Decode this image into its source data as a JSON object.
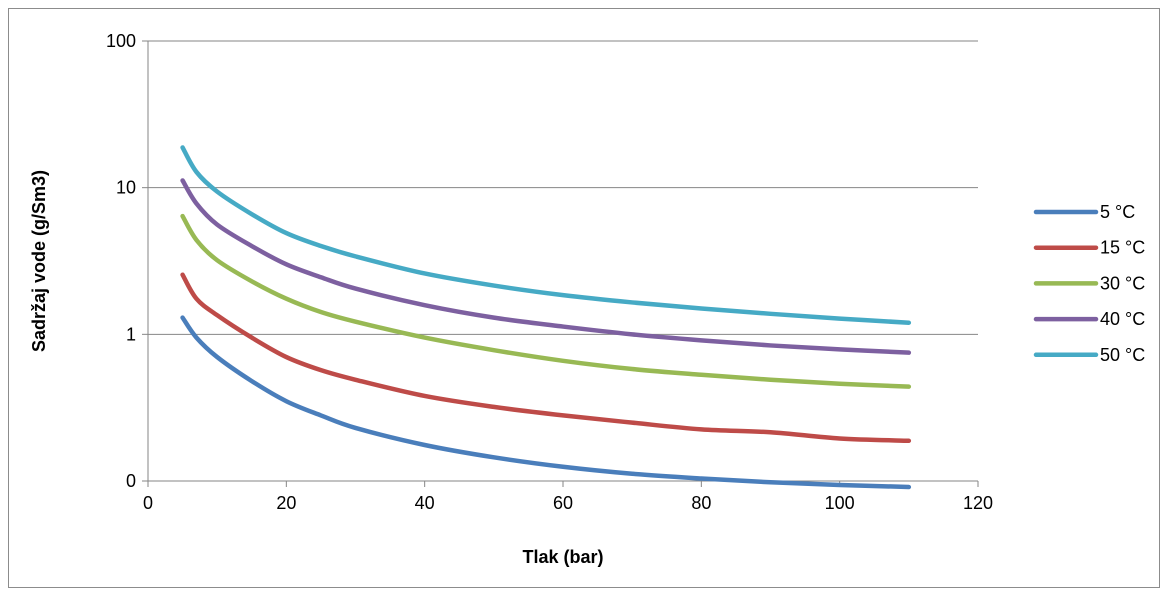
{
  "chart_data": {
    "type": "line",
    "title": "",
    "xlabel": "Tlak (bar)",
    "ylabel": "Sadržaj vode (g/Sm3)",
    "xlim": [
      0,
      120
    ],
    "x_ticks": [
      "0",
      "20",
      "40",
      "60",
      "80",
      "100",
      "120"
    ],
    "y_scale": "log",
    "y_ticks": [
      "0",
      "1",
      "10",
      "100"
    ],
    "grid": "horizontal major gridlines",
    "legend_position": "right",
    "x": [
      5,
      7,
      10,
      15,
      20,
      25,
      30,
      40,
      50,
      60,
      70,
      80,
      90,
      100,
      110
    ],
    "series": [
      {
        "name": "5 °C",
        "color": "#4a7ebb",
        "values": [
          1.3,
          0.95,
          0.7,
          0.48,
          0.35,
          0.28,
          0.23,
          0.176,
          0.145,
          0.125,
          0.112,
          0.104,
          0.098,
          0.094,
          0.091
        ]
      },
      {
        "name": "15 °C",
        "color": "#be4b48",
        "values": [
          2.55,
          1.75,
          1.35,
          0.95,
          0.7,
          0.57,
          0.49,
          0.38,
          0.32,
          0.28,
          0.25,
          0.225,
          0.215,
          0.195,
          0.188
        ]
      },
      {
        "name": "30 °C",
        "color": "#98b954",
        "values": [
          6.4,
          4.4,
          3.2,
          2.3,
          1.75,
          1.42,
          1.22,
          0.95,
          0.78,
          0.66,
          0.58,
          0.53,
          0.49,
          0.46,
          0.44
        ]
      },
      {
        "name": "40 °C",
        "color": "#7d60a0",
        "values": [
          11.2,
          7.8,
          5.6,
          4.0,
          3.0,
          2.45,
          2.05,
          1.58,
          1.3,
          1.13,
          1.0,
          0.91,
          0.84,
          0.79,
          0.75
        ]
      },
      {
        "name": "50 °C",
        "color": "#46aac5",
        "values": [
          18.8,
          12.8,
          9.4,
          6.6,
          4.9,
          4.0,
          3.4,
          2.6,
          2.15,
          1.85,
          1.65,
          1.5,
          1.38,
          1.28,
          1.2
        ]
      }
    ]
  }
}
